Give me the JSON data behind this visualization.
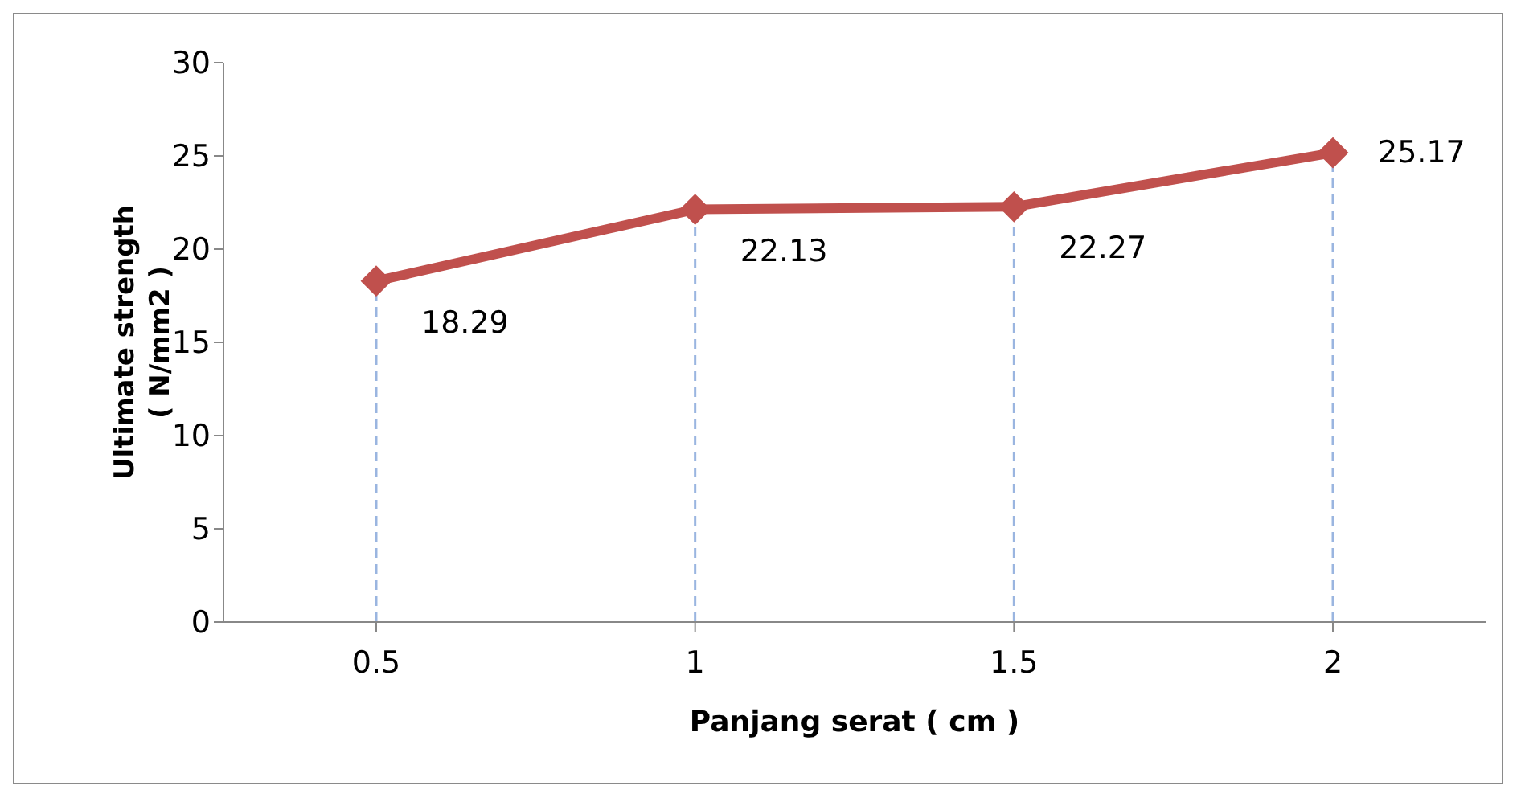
{
  "chart_data": {
    "type": "line",
    "xlabel": "Panjang serat ( cm )",
    "ylabel": "Ultimate strength\n( N/mm2 )",
    "categories": [
      "0.5",
      "1",
      "1.5",
      "2"
    ],
    "series": [
      {
        "color": "#c0504d",
        "values": [
          18.29,
          22.13,
          22.27,
          25.17
        ]
      }
    ],
    "ylim": [
      0,
      30
    ],
    "yticks": [
      0,
      5,
      10,
      15,
      20,
      25,
      30
    ],
    "ref_lines": [
      {
        "axis": "x",
        "value": "0.5",
        "color": "#9ab5e0",
        "line_style": "dashed"
      },
      {
        "axis": "x",
        "value": "1",
        "color": "#9ab5e0",
        "line_style": "dashed"
      },
      {
        "axis": "x",
        "value": "1.5",
        "color": "#9ab5e0",
        "line_style": "dashed"
      },
      {
        "axis": "x",
        "value": "2",
        "color": "#9ab5e0",
        "line_style": "dashed"
      }
    ],
    "marker": "diamond",
    "line_style": "solid",
    "data_labels": true,
    "grid": false,
    "legend": false
  }
}
